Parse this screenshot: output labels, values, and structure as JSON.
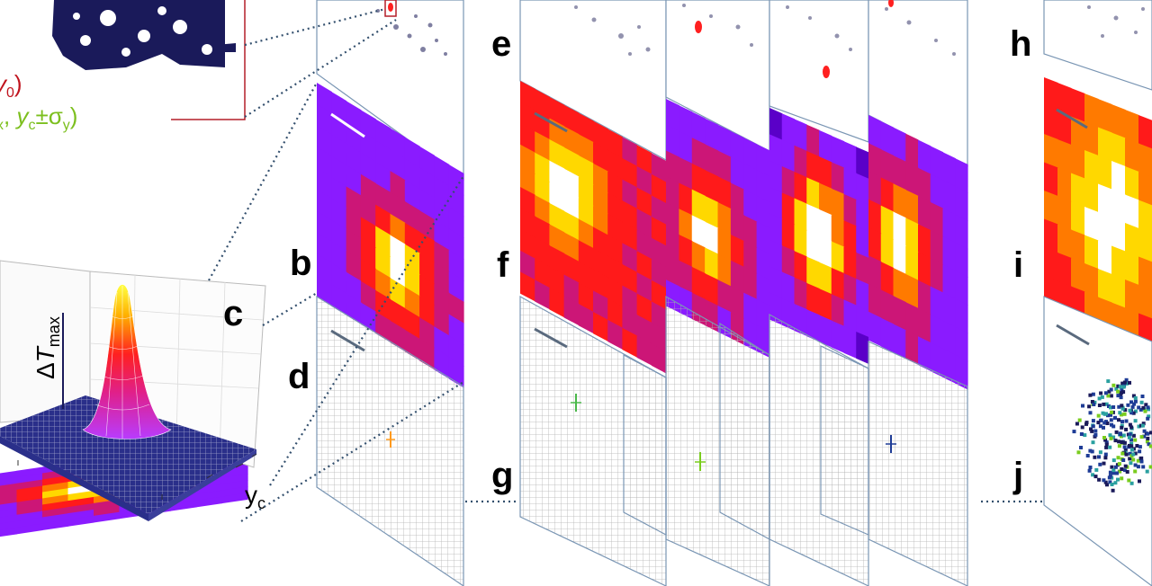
{
  "panel_labels": {
    "b": "b",
    "c": "c",
    "d": "d",
    "e": "e",
    "f": "f",
    "g": "g",
    "h": "h",
    "i": "i",
    "j": "j"
  },
  "formula": {
    "red_var": "y",
    "red_sub": "0",
    "red_close": ")",
    "green_sub_x": "x",
    "green_sep": ", ",
    "green_var": "y",
    "green_sub_c": "c",
    "green_pm": "±σ",
    "green_sub_y": "y",
    "green_close": ")"
  },
  "axes": {
    "z_delta": "Δ",
    "z_var": "T",
    "z_sub": "max",
    "y_var": "y",
    "y_sub": "c"
  },
  "colors": {
    "fire_dark": "#5a00c8",
    "fire_purple": "#8a1bff",
    "fire_magenta": "#cc1677",
    "fire_red": "#ff1a1a",
    "fire_orange": "#ff7a00",
    "fire_yellow": "#ffd800",
    "fire_white": "#ffffff",
    "navy": "#1a1a5a",
    "frame_blue": "#7a96b4",
    "grid_gray": "#b4b4b4",
    "red_formula": "#c0141e",
    "green_formula": "#7cbf1e",
    "dotted": "#34506e",
    "mark_orange": "#ff9a1e",
    "mark_green": "#4ab84a",
    "mark_lime": "#7acc1e",
    "mark_blue": "#1e3c96"
  }
}
